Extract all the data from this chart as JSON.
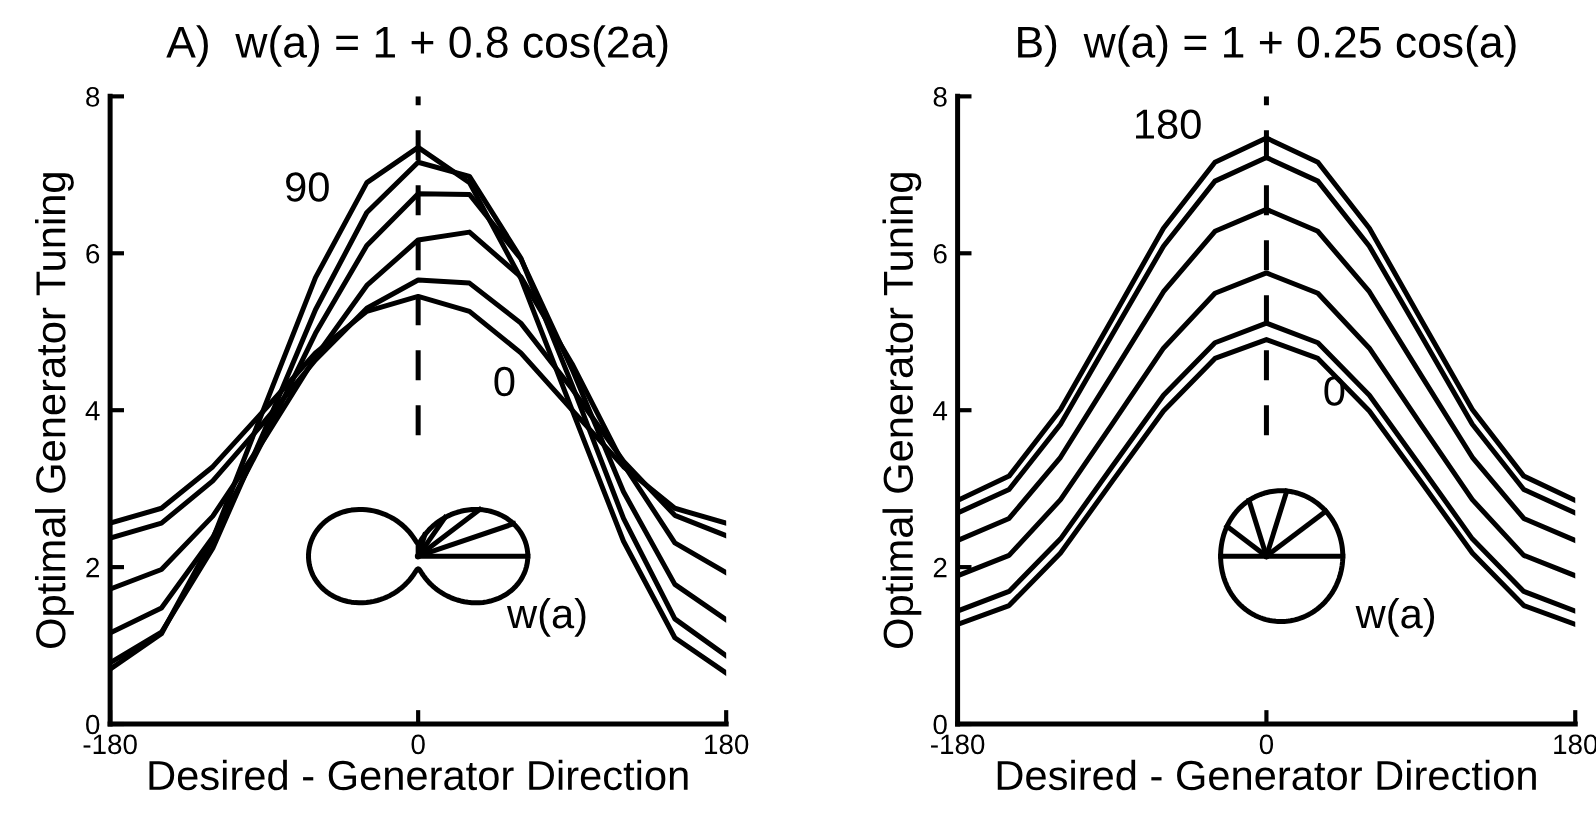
{
  "chart_data": [
    {
      "type": "line",
      "title": "A)  w(a) = 1 + 0.8 cos(2a)",
      "xlabel": "Desired - Generator Direction",
      "ylabel": "Optimal Generator Tuning",
      "x": [
        -180,
        -150,
        -120,
        -90,
        -60,
        -30,
        0,
        30,
        60,
        90,
        120,
        150,
        180
      ],
      "xlim": [
        -180,
        180
      ],
      "xticks": [
        -180,
        0,
        180
      ],
      "ylim": [
        0,
        8
      ],
      "yticks": [
        0,
        2,
        4,
        6,
        8
      ],
      "grid": false,
      "legend": false,
      "line_style": "solid",
      "marker": "none",
      "series": [
        {
          "color": "#000000",
          "values": [
            0.7,
            1.15,
            2.36,
            4.03,
            5.69,
            6.9,
            7.35,
            6.9,
            5.68,
            4.0,
            2.33,
            1.1,
            0.65
          ]
        },
        {
          "color": "#000000",
          "values": [
            0.78,
            1.17,
            2.24,
            3.73,
            5.28,
            6.52,
            7.16,
            6.98,
            5.94,
            4.32,
            2.62,
            1.34,
            0.87
          ]
        },
        {
          "color": "#000000",
          "values": [
            1.16,
            1.48,
            2.38,
            3.64,
            4.98,
            6.1,
            6.76,
            6.75,
            5.93,
            4.52,
            2.96,
            1.78,
            1.33
          ]
        },
        {
          "color": "#000000",
          "values": [
            1.72,
            1.97,
            2.65,
            3.63,
            4.68,
            5.59,
            6.17,
            6.27,
            5.7,
            4.59,
            3.31,
            2.31,
            1.93
          ]
        },
        {
          "color": "#000000",
          "values": [
            2.37,
            2.56,
            3.1,
            3.85,
            4.64,
            5.3,
            5.66,
            5.62,
            5.11,
            4.27,
            3.35,
            2.66,
            2.4
          ]
        },
        {
          "color": "#000000",
          "values": [
            2.56,
            2.75,
            3.28,
            4.0,
            4.73,
            5.26,
            5.45,
            5.26,
            4.73,
            4.0,
            3.28,
            2.75,
            2.56
          ]
        }
      ],
      "ref_lines": [
        {
          "axis": "x",
          "value": 0,
          "line_style": "dashed",
          "color": "#000000"
        }
      ],
      "annotations": [
        "90",
        "0",
        "w(a)"
      ]
    },
    {
      "type": "line",
      "title": "B)  w(a) = 1 + 0.25 cos(a)",
      "xlabel": "Desired - Generator Direction",
      "ylabel": "Optimal Generator Tuning",
      "x": [
        -180,
        -150,
        -120,
        -90,
        -60,
        -30,
        0,
        30,
        60,
        90,
        120,
        150,
        180
      ],
      "xlim": [
        -180,
        180
      ],
      "xticks": [
        -180,
        0,
        180
      ],
      "ylim": [
        0,
        8
      ],
      "yticks": [
        0,
        2,
        4,
        6,
        8
      ],
      "grid": false,
      "legend": false,
      "line_style": "solid",
      "marker": "none",
      "series": [
        {
          "color": "#000000",
          "values": [
            2.85,
            3.16,
            4.01,
            5.16,
            6.32,
            7.16,
            7.47,
            7.16,
            6.32,
            5.16,
            4.01,
            3.16,
            2.85
          ]
        },
        {
          "color": "#000000",
          "values": [
            2.69,
            2.99,
            3.82,
            4.96,
            6.09,
            6.92,
            7.22,
            6.92,
            6.09,
            4.96,
            3.82,
            2.99,
            2.69
          ]
        },
        {
          "color": "#000000",
          "values": [
            2.34,
            2.62,
            3.4,
            4.45,
            5.51,
            6.28,
            6.56,
            6.28,
            5.51,
            4.45,
            3.4,
            2.62,
            2.34
          ]
        },
        {
          "color": "#000000",
          "values": [
            1.89,
            2.15,
            2.86,
            3.82,
            4.79,
            5.49,
            5.75,
            5.49,
            4.79,
            3.82,
            2.86,
            2.15,
            1.89
          ]
        },
        {
          "color": "#000000",
          "values": [
            1.44,
            1.69,
            2.36,
            3.28,
            4.19,
            4.86,
            5.11,
            4.86,
            4.19,
            3.28,
            2.36,
            1.69,
            1.44
          ]
        },
        {
          "color": "#000000",
          "values": [
            1.27,
            1.51,
            2.18,
            3.09,
            3.99,
            4.66,
            4.9,
            4.66,
            3.99,
            3.09,
            2.18,
            1.51,
            1.27
          ]
        }
      ],
      "ref_lines": [
        {
          "axis": "x",
          "value": 0,
          "line_style": "dashed",
          "color": "#000000"
        }
      ],
      "annotations": [
        "180",
        "0",
        "w(a)"
      ]
    }
  ]
}
